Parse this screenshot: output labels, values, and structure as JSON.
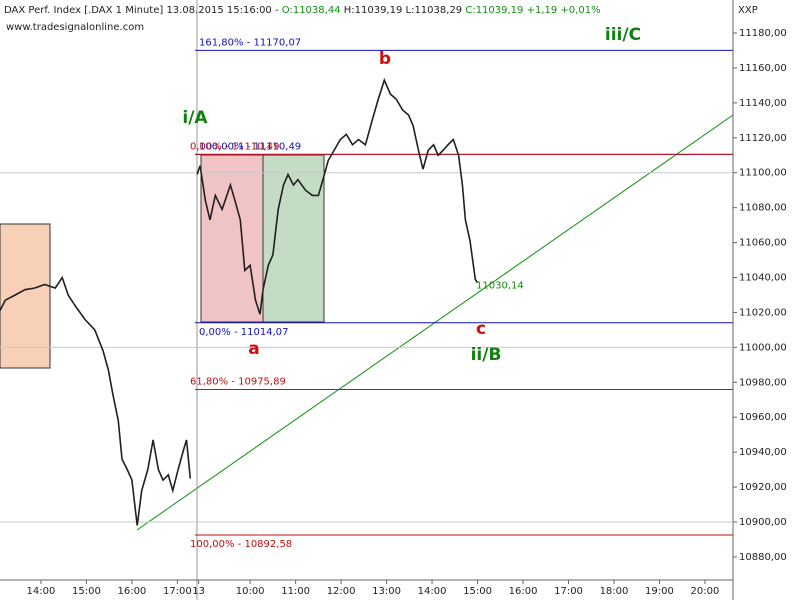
{
  "chart_data": {
    "type": "line",
    "header": [
      "DAX Perf. Index [.DAX  1 Minute] 13.08.2015 15:16:00 - ",
      "O:11038,44",
      " H:11039,19 L:11038,29 ",
      "C:11039,19",
      " +1,19 +0,01%"
    ],
    "source": "www.tradesignalonline.com",
    "axis_name": "XXP",
    "color": "#202020",
    "x": [
      0,
      7,
      20,
      33,
      46,
      59,
      73,
      82,
      90,
      99,
      112,
      125,
      136,
      143,
      149,
      156,
      161,
      168,
      174,
      181,
      187,
      195,
      202,
      209,
      215,
      222,
      228,
      235,
      242,
      246,
      251,
      255,
      260,
      264,
      271,
      277,
      284,
      293,
      304,
      310,
      317,
      323,
      330,
      337,
      343,
      347,
      354,
      360,
      367,
      374,
      380,
      387,
      393,
      403,
      412,
      420,
      428,
      433,
      441,
      449,
      457,
      465,
      473,
      482,
      491,
      499,
      507,
      515,
      523,
      531,
      539,
      545,
      552,
      558,
      565,
      572,
      578,
      585,
      591,
      598,
      605,
      610,
      614,
      620,
      627,
      630
    ],
    "values": [
      11021,
      11027,
      11030,
      11033,
      11034,
      11036,
      11034,
      11040,
      11030,
      11024,
      11016,
      11010,
      10998,
      10987,
      10973,
      10958,
      10936,
      10930,
      10924,
      10898,
      10918,
      10930,
      10947,
      10930,
      10924,
      10927,
      10918,
      10930,
      10941,
      10947,
      10925,
      null,
      11099,
      11104,
      11084,
      11073,
      11087,
      11079,
      11093,
      11084,
      11073,
      11044,
      11047,
      11027,
      11019,
      11033,
      11047,
      11053,
      11079,
      11093,
      11099,
      11093,
      11096,
      11090,
      11087,
      11087,
      11099,
      11107,
      11113,
      11119,
      11122,
      11116,
      11119,
      11116,
      11130,
      11142,
      11153,
      11145,
      11142,
      11136,
      11133,
      11127,
      11113,
      11102,
      11113,
      11116,
      11110,
      11113,
      11116,
      11119,
      11110,
      11093,
      11073,
      11061,
      11039,
      11037
    ],
    "xlim": [
      0,
      967
    ],
    "ylim": [
      10866.8,
      11198.9
    ],
    "yticks": [
      {
        "value": 10880,
        "label": "10880,00"
      },
      {
        "value": 10900,
        "label": "10900,00"
      },
      {
        "value": 10920,
        "label": "10920,00"
      },
      {
        "value": 10940,
        "label": "10940,00"
      },
      {
        "value": 10960,
        "label": "10960,00"
      },
      {
        "value": 10980,
        "label": "10980,00"
      },
      {
        "value": 11000,
        "label": "11000,00"
      },
      {
        "value": 11020,
        "label": "11020,00"
      },
      {
        "value": 11040,
        "label": "11040,00"
      },
      {
        "value": 11060,
        "label": "11060,00"
      },
      {
        "value": 11080,
        "label": "11080,00"
      },
      {
        "value": 11100,
        "label": "11100,00"
      },
      {
        "value": 11120,
        "label": "11120,00"
      },
      {
        "value": 11140,
        "label": "11140,00"
      },
      {
        "value": 11160,
        "label": "11160,00"
      },
      {
        "value": 11180,
        "label": "11180,00"
      }
    ],
    "xticks": [
      {
        "value": 54,
        "label": "14:00"
      },
      {
        "value": 114,
        "label": "15:00"
      },
      {
        "value": 174,
        "label": "16:00"
      },
      {
        "value": 234,
        "label": "17:00"
      },
      {
        "value": 262,
        "label": "13"
      },
      {
        "value": 330,
        "label": "10:00"
      },
      {
        "value": 390,
        "label": "11:00"
      },
      {
        "value": 450,
        "label": "12:00"
      },
      {
        "value": 510,
        "label": "13:00"
      },
      {
        "value": 570,
        "label": "14:00"
      },
      {
        "value": 630,
        "label": "15:00"
      },
      {
        "value": 690,
        "label": "16:00"
      },
      {
        "value": 750,
        "label": "17:00"
      },
      {
        "value": 810,
        "label": "18:00"
      },
      {
        "value": 870,
        "label": "19:00"
      },
      {
        "value": 930,
        "label": "20:00"
      }
    ],
    "levels": [
      {
        "label": "161,80% - 11170,07",
        "value": 11170.07,
        "color": "#1010c0"
      },
      {
        "label": "100,00% - 11110,49",
        "value": 11110.49,
        "color": "#1010c0"
      },
      {
        "label": "0,00% - 11110,49",
        "value": 11110.49,
        "color": "#c01010"
      },
      {
        "label": "0,00% - 11014,07",
        "value": 11014.07,
        "color": "#1010c0"
      },
      {
        "label": "61,80% - 10975,89",
        "value": 10975.89,
        "color": "#c01010"
      },
      {
        "label": "100,00% - 10892,58",
        "value": 10892.58,
        "color": "#c01010"
      }
    ],
    "last_label": {
      "text": "11030,14",
      "value": 11030.14
    },
    "waves": [
      "i/A",
      "a",
      "b",
      "c",
      "ii/B",
      "iii/C"
    ]
  }
}
